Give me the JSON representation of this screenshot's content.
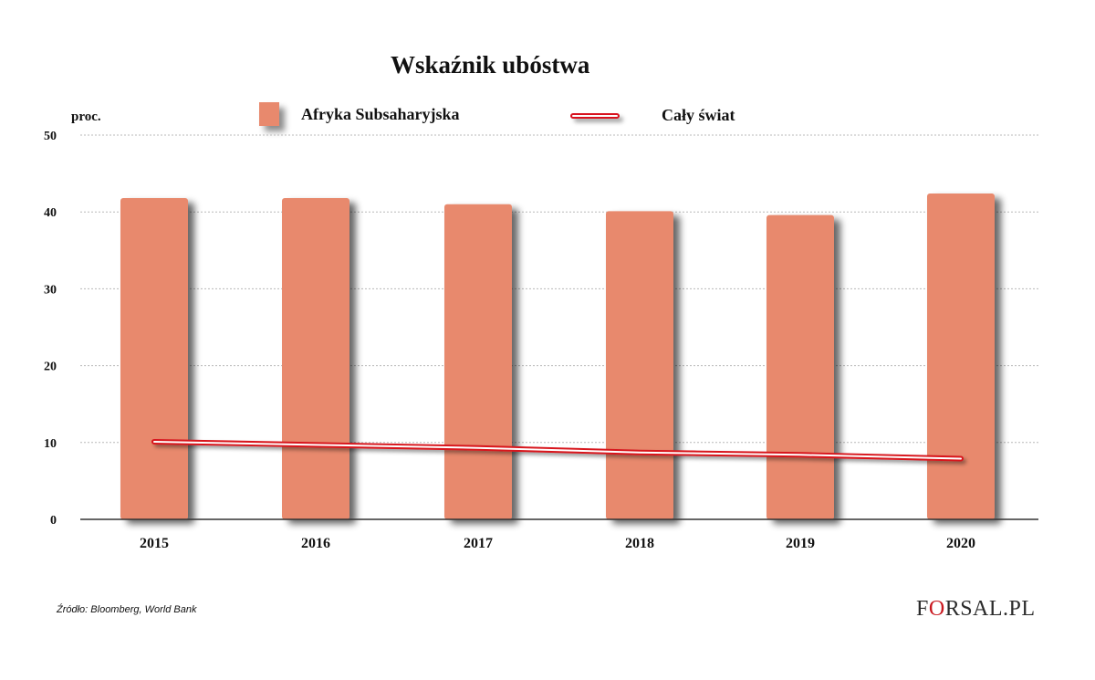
{
  "colors": {
    "bar": "#e8896d",
    "line": "#d8121f",
    "grid": "#b8b8b8",
    "axis": "#333333"
  },
  "chart_data": {
    "type": "bar",
    "title": "Wskaźnik ubóstwa",
    "unit_label": "proc.",
    "categories": [
      "2015",
      "2016",
      "2017",
      "2018",
      "2019",
      "2020"
    ],
    "series": [
      {
        "name": "Afryka Subsaharyjska",
        "type": "bar",
        "values": [
          41.8,
          41.8,
          41.0,
          40.1,
          39.6,
          42.4
        ]
      },
      {
        "name": "Cały świat",
        "type": "line",
        "values": [
          10.1,
          9.7,
          9.3,
          8.7,
          8.4,
          7.9
        ]
      }
    ],
    "yticks": [
      "0",
      "10",
      "20",
      "30",
      "40",
      "50"
    ],
    "ylim": [
      0,
      50
    ],
    "grid": true,
    "legend_position": "top"
  },
  "footer": {
    "source": "Źródło:  Bloomberg, World Bank"
  },
  "logo": {
    "text_before": "F",
    "text_o": "O",
    "text_after": "RSAL.PL",
    "icon": "bar-chart-icon"
  }
}
